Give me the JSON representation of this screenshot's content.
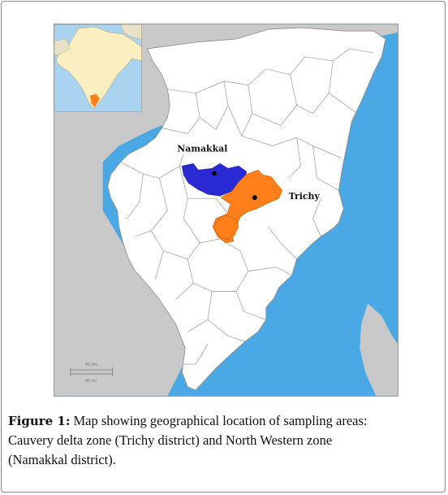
{
  "map": {
    "labels": {
      "namakkal": "Namakkal",
      "trichy": "Trichy"
    },
    "scale_bar": {
      "km": "40 km",
      "mi": "40 mi"
    },
    "colors": {
      "sea": "#4aa9e4",
      "land": "#ffffff",
      "neighbor_land": "#c9c9c9",
      "namakkal_district": "#2a2ad4",
      "trichy_district": "#ff7f1a",
      "inset_india": "#fbeec0",
      "inset_tamil_nadu": "#ff7f1a"
    }
  },
  "caption": {
    "label": "Figure 1:",
    "line1": "Map showing geographical location of sampling areas:",
    "line2": "Cauvery delta zone (Trichy district) and North Western zone",
    "line3": "(Namakkal district)."
  }
}
